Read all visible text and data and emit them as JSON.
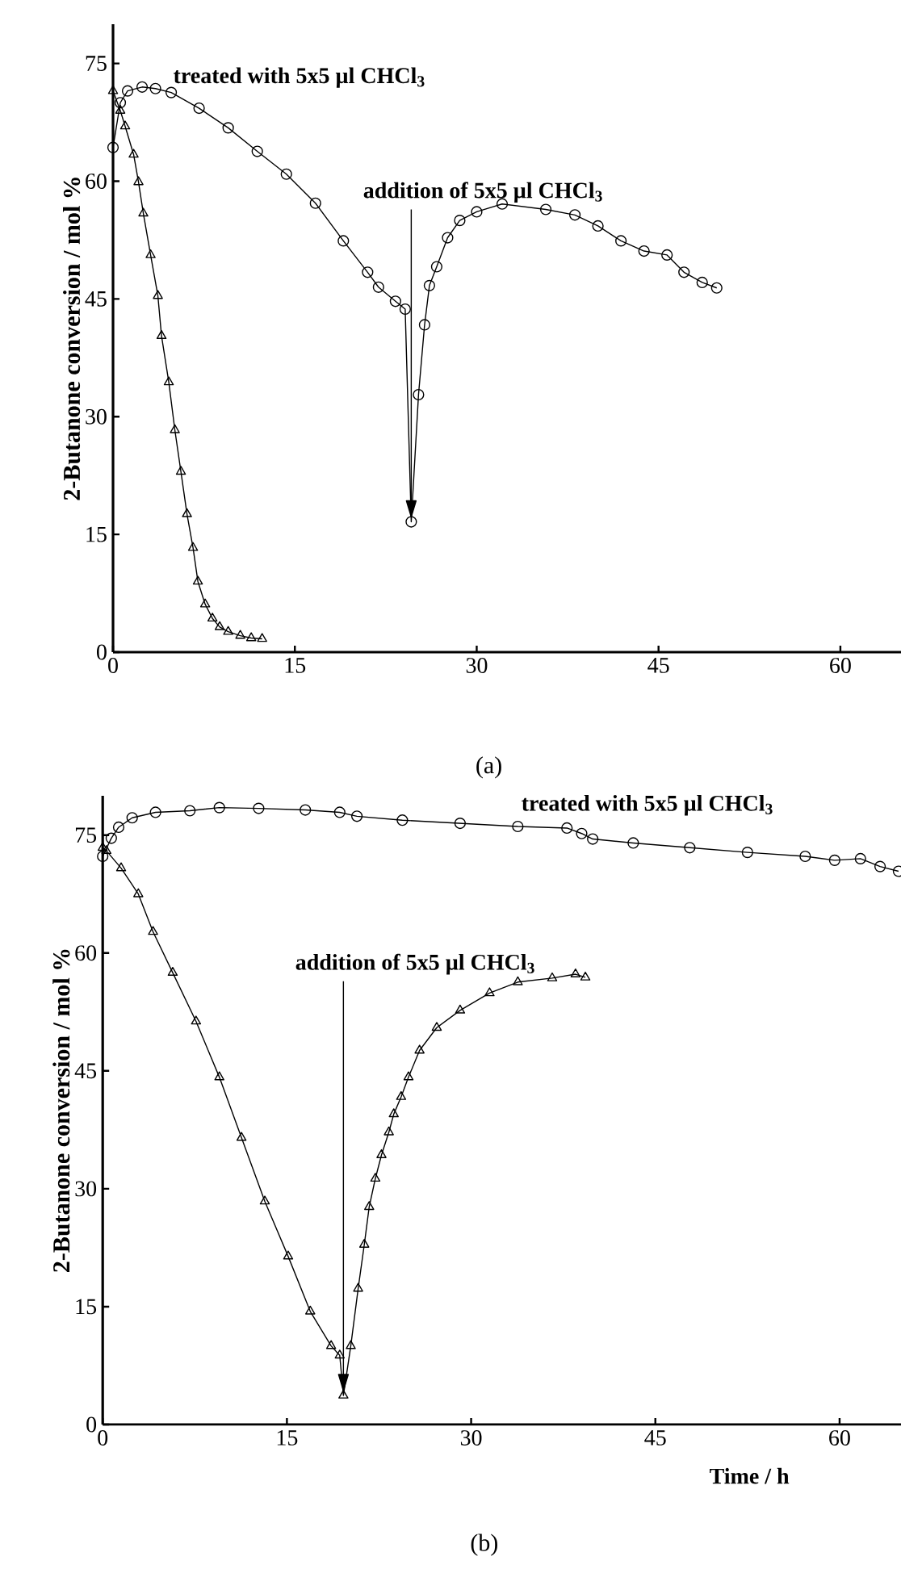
{
  "chart_data": [
    {
      "type": "line",
      "xlim": [
        0,
        65
      ],
      "ylim": [
        0,
        80
      ],
      "xticks": [
        0,
        15,
        30,
        45,
        60
      ],
      "yticks": [
        0,
        15,
        30,
        45,
        60,
        75
      ],
      "ylabel": "2-Butanone conversion / mol %",
      "ref_lines": [
        {
          "axis": "x",
          "value": 24.6,
          "label": "addition of 5x5 µl CHCl$_{3}$",
          "color": "#000000"
        }
      ],
      "annotations": [
        "(a)"
      ],
      "series": [
        {
          "name": "treated with 5x5 µl CHCl$_{3}$",
          "color": "#000000",
          "marker": "circle",
          "x": [
            0,
            0.6,
            1.2,
            2.4,
            3.5,
            4.8,
            7.1,
            9.5,
            11.9,
            14.3,
            16.7,
            19.0,
            21.0,
            21.9,
            23.3,
            24.1,
            24.6,
            25.2,
            25.7,
            26.1,
            26.7,
            27.6,
            28.6,
            30.0,
            32.1,
            35.7,
            38.1,
            40.0,
            41.9,
            43.8,
            45.7,
            47.1,
            48.6,
            49.8
          ],
          "values": [
            64.3,
            70,
            71.5,
            72,
            71.8,
            71.3,
            69.3,
            66.8,
            63.8,
            60.9,
            57.2,
            52.4,
            48.4,
            46.5,
            44.7,
            43.7,
            16.6,
            32.8,
            41.7,
            46.7,
            49.1,
            52.8,
            55,
            56.1,
            57.1,
            56.4,
            55.7,
            54.3,
            52.4,
            51.1,
            50.6,
            48.4,
            47.1,
            46.4
          ]
        },
        {
          "color": "#000000",
          "marker": "triangle",
          "x": [
            0,
            0.6,
            1.0,
            1.7,
            2.1,
            2.5,
            3.1,
            3.7,
            4.0,
            4.6,
            5.1,
            5.6,
            6.1,
            6.6,
            7.0,
            7.6,
            8.2,
            8.8,
            9.5,
            10.5,
            11.4,
            12.3
          ],
          "values": [
            71.5,
            69,
            67,
            63.4,
            59.9,
            55.9,
            50.6,
            45.4,
            40.3,
            34.4,
            28.3,
            23,
            17.6,
            13.3,
            9,
            6.1,
            4.3,
            3.2,
            2.6,
            2.1,
            1.8,
            1.7
          ]
        }
      ]
    },
    {
      "type": "line",
      "xlim": [
        0,
        65
      ],
      "ylim": [
        0,
        80
      ],
      "xticks": [
        0,
        15,
        30,
        45,
        60
      ],
      "yticks": [
        0,
        15,
        30,
        45,
        60,
        75
      ],
      "xlabel": "Time / h",
      "ylabel": "2-Butanone conversion / mol %",
      "ref_lines": [
        {
          "axis": "x",
          "value": 19.6,
          "label": "addition of 5x5 µl CHCl$_{3}$",
          "color": "#000000"
        }
      ],
      "annotations": [
        "(b)"
      ],
      "series": [
        {
          "name": "treated with 5x5 µl CHCl$_{3}$",
          "color": "#000000",
          "marker": "circle",
          "x": [
            0,
            0.7,
            1.3,
            2.4,
            4.3,
            7.1,
            9.5,
            12.7,
            16.5,
            19.3,
            20.7,
            24.4,
            29.1,
            33.8,
            37.8,
            39.0,
            39.9,
            43.2,
            47.8,
            52.5,
            57.2,
            59.6,
            61.7,
            63.3,
            64.8
          ],
          "values": [
            72.3,
            74.6,
            76,
            77.2,
            77.9,
            78.1,
            78.5,
            78.4,
            78.2,
            77.9,
            77.4,
            76.9,
            76.5,
            76.1,
            75.9,
            75.2,
            74.5,
            74,
            73.4,
            72.8,
            72.3,
            71.8,
            72,
            71,
            70.4
          ]
        },
        {
          "color": "#000000",
          "marker": "triangle",
          "x": [
            0,
            0.3,
            1.5,
            2.9,
            4.1,
            5.7,
            7.6,
            9.5,
            11.3,
            13.2,
            15.1,
            16.9,
            18.6,
            19.3,
            19.6,
            20.2,
            20.8,
            21.3,
            21.7,
            22.2,
            22.7,
            23.3,
            23.7,
            24.3,
            24.9,
            25.8,
            27.2,
            29.1,
            31.5,
            33.8,
            36.6,
            38.5,
            39.3
          ],
          "values": [
            73.4,
            73,
            70.8,
            67.5,
            62.7,
            57.5,
            51.3,
            44.2,
            36.5,
            28.4,
            21.4,
            14.4,
            10,
            8.8,
            3.7,
            10,
            17.3,
            22.9,
            27.7,
            31.3,
            34.3,
            37.2,
            39.5,
            41.7,
            44.2,
            47.6,
            50.5,
            52.7,
            54.9,
            56.3,
            56.8,
            57.3,
            56.9
          ]
        }
      ]
    }
  ]
}
